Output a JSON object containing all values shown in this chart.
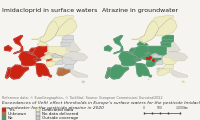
{
  "title_left": "Imidacloprid in surface waters",
  "title_right": "Atrazine in groundwater",
  "caption_line1": "Exceedances of (left) effect thresholds in Europe's surface waters for the pesticide Imidacloprid in 2020; and (right) quality standards in Europe's",
  "caption_line2": "groundwater for the pesticide atrazine in 2020",
  "reference": "Reference data: © EuroGeographics, © TurkStat; Source: European Commission; Eurostat/2022",
  "bg_color": "#f5f4f0",
  "sea_color": "#c9e8f5",
  "border_color": "#aaaaaa",
  "outside_color": "#e0ddd5",
  "no_data_color": "#d9d9d9",
  "legend_left": [
    {
      "label": "Yes",
      "color": "#cc2211"
    },
    {
      "label": "Unknown",
      "color": "#b87040"
    },
    {
      "label": "No",
      "color": "#4a9a6a"
    }
  ],
  "legend_right": [
    {
      "label": "Dedicated data",
      "color": "#eeecc0"
    },
    {
      "label": "No data delivered",
      "color": "#d9d9d9"
    },
    {
      "label": "Outside coverage",
      "color": "#c8c8c8"
    }
  ],
  "countries_left": {
    "yes": [
      "ESP",
      "PRT",
      "FRA",
      "BEL",
      "NLD",
      "DEU_W",
      "ITA_N",
      "GBR"
    ],
    "unknown": [
      "ITA_C",
      "GRC"
    ],
    "no": [
      "DEU_E",
      "POL",
      "CZE",
      "AUT",
      "CHE",
      "HUN",
      "SVK",
      "SVN",
      "HRV",
      "DNK",
      "NOR",
      "SWE",
      "FIN"
    ],
    "no_data": [
      "ROU",
      "BGR",
      "SRB",
      "UKR",
      "BLR",
      "LTU",
      "LVA",
      "EST",
      "TUR"
    ]
  },
  "title_fontsize": 4.5,
  "caption_fontsize": 3.2,
  "ref_fontsize": 2.4,
  "legend_fontsize": 3.0
}
